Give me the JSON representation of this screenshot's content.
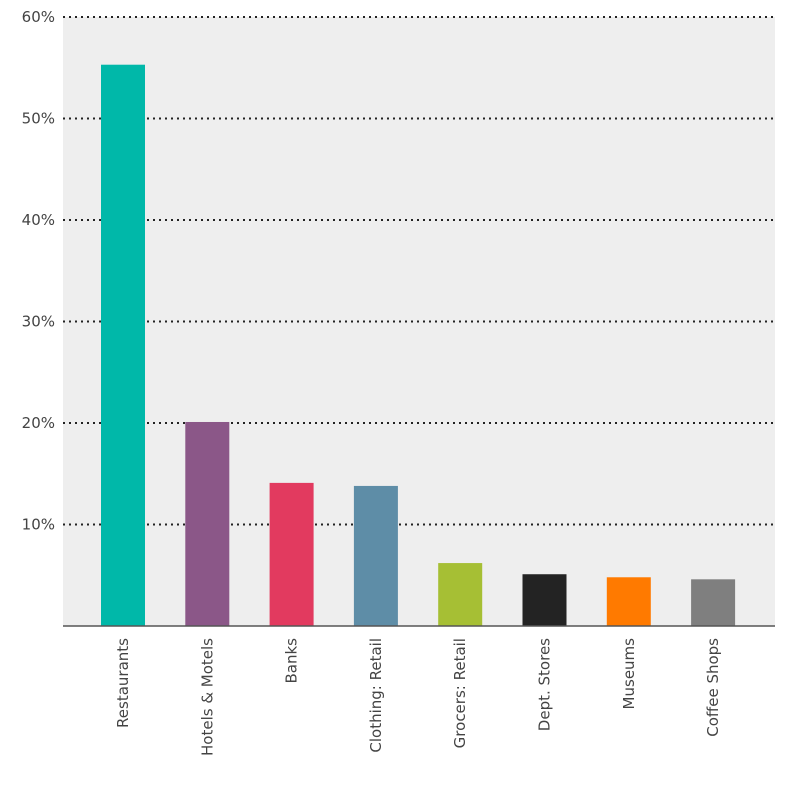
{
  "chart_data": {
    "type": "bar",
    "title": "",
    "xlabel": "",
    "ylabel": "",
    "ylim": [
      0,
      60
    ],
    "yticks": [
      10,
      20,
      30,
      40,
      50,
      60
    ],
    "ytick_labels": [
      "10%",
      "20%",
      "30%",
      "40%",
      "50%",
      "60%"
    ],
    "grid": true,
    "categories": [
      "Restaurants",
      "Hotels & Motels",
      "Banks",
      "Clothing: Retail",
      "Grocers: Retail",
      "Dept. Stores",
      "Museums",
      "Coffee Shops"
    ],
    "values": [
      55.3,
      20.1,
      14.1,
      13.8,
      6.2,
      5.1,
      4.8,
      4.6
    ],
    "colors": [
      "#00B8A9",
      "#8B5788",
      "#E23A5F",
      "#5E8DA7",
      "#A6BF34",
      "#232323",
      "#FF7A00",
      "#7F7F7F"
    ],
    "plot_background": "#EEEEEE"
  }
}
